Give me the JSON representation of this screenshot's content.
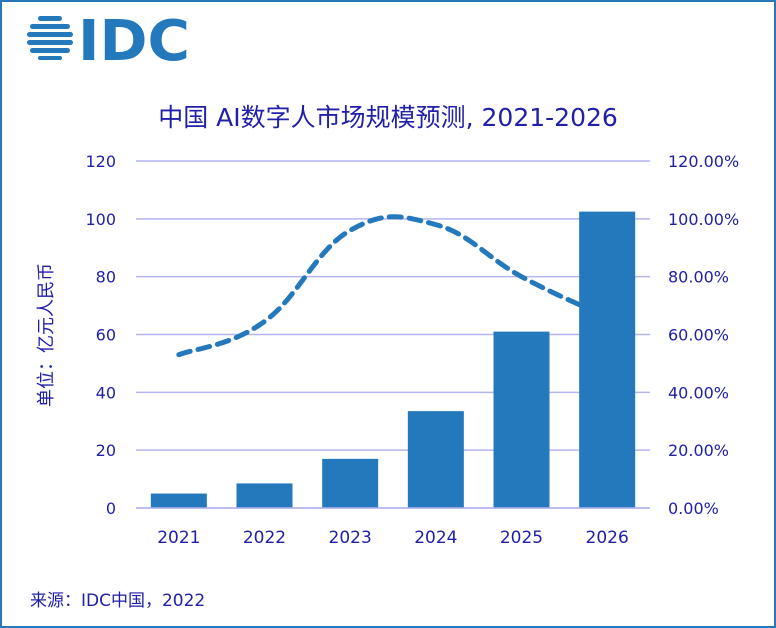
{
  "logo_text": "IDC",
  "source": "来源：IDC中国，2022",
  "colors": {
    "bar": "#2479bd",
    "line": "#2479bd",
    "grid": "#b4b4f0",
    "text": "#2020a8"
  },
  "chart_data": {
    "type": "bar",
    "title": "中国 AI数字人市场规模预测, 2021-2026",
    "ylabel": "单位：亿元人民币",
    "xlabel": "",
    "categories": [
      "2021",
      "2022",
      "2023",
      "2024",
      "2025",
      "2026"
    ],
    "series": [
      {
        "type": "bar",
        "axis": "left",
        "values": [
          5,
          8.5,
          17,
          33.5,
          61,
          102.5
        ]
      },
      {
        "type": "line",
        "axis": "right",
        "style": "dashed",
        "values": [
          53,
          64.5,
          96,
          98,
          80,
          66
        ]
      }
    ],
    "ylim": [
      0,
      120
    ],
    "yticks": [
      "0",
      "20",
      "40",
      "60",
      "80",
      "100",
      "120"
    ],
    "y2lim": [
      0,
      120
    ],
    "y2ticks": [
      "0.00%",
      "20.00%",
      "40.00%",
      "60.00%",
      "80.00%",
      "100.00%",
      "120.00%"
    ],
    "grid": true,
    "legend": "none"
  }
}
